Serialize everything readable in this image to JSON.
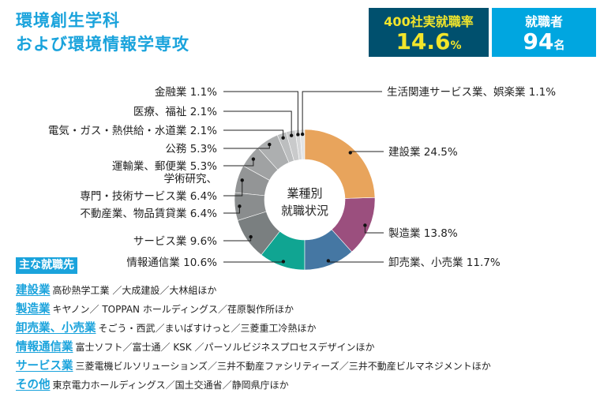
{
  "header": {
    "title_line1": "環境創生学科",
    "title_line2": "および環境情報学専攻"
  },
  "stats": [
    {
      "label": "400社実就職率",
      "value": "14.6",
      "unit": "%"
    },
    {
      "label": "就職者",
      "value": "94",
      "unit": "名"
    }
  ],
  "chart_data": {
    "type": "pie",
    "donut": true,
    "center_label_line1": "業種別",
    "center_label_line2": "就職状況",
    "slices": [
      {
        "name": "建設業",
        "value": 24.5,
        "label": "建設業 24.5%",
        "color": "#e8a45c"
      },
      {
        "name": "製造業",
        "value": 13.8,
        "label": "製造業 13.8%",
        "color": "#9b4f7e"
      },
      {
        "name": "卸売業、小売業",
        "value": 11.7,
        "label": "卸売業、小売業 11.7%",
        "color": "#4577a3"
      },
      {
        "name": "情報通信業",
        "value": 10.6,
        "label": "情報通信業 10.6%",
        "color": "#10a592"
      },
      {
        "name": "サービス業",
        "value": 9.6,
        "label": "サービス業 9.6%",
        "color": "#7a7f80"
      },
      {
        "name": "不動産業、物品賃貸業",
        "value": 6.4,
        "label": "不動産業、物品賃貸業 6.4%",
        "color": "#8a8d8e"
      },
      {
        "name": "学術研究、専門・技術サービス業",
        "value": 6.4,
        "label": "学術研究、|専門・技術サービス業 6.4%",
        "color": "#939596"
      },
      {
        "name": "運輸業、郵便業",
        "value": 5.3,
        "label": "運輸業、郵便業 5.3%",
        "color": "#a0a2a3"
      },
      {
        "name": "公務",
        "value": 5.3,
        "label": "公務 5.3%",
        "color": "#adafb0"
      },
      {
        "name": "電気・ガス・熱供給・水道業",
        "value": 2.1,
        "label": "電気・ガス・熱供給・水道業 2.1%",
        "color": "#bcbebf"
      },
      {
        "name": "医療、福祉",
        "value": 2.1,
        "label": "医療、福祉 2.1%",
        "color": "#c9cacb"
      },
      {
        "name": "金融業",
        "value": 1.1,
        "label": "金融業 1.1%",
        "color": "#d6d7d8"
      },
      {
        "name": "生活関連サービス業、娯楽業",
        "value": 1.1,
        "label": "生活関連サービス業、娯楽業 1.1%",
        "color": "#e3e4e4"
      }
    ]
  },
  "employers": {
    "heading": "主な就職先",
    "rows": [
      {
        "category": "建設業",
        "companies": "高砂熱学工業 ／大成建設／大林組ほか"
      },
      {
        "category": "製造業",
        "companies": "キヤノン／ TOPPAN ホールディングス／荏原製作所ほか"
      },
      {
        "category": "卸売業、小売業",
        "companies": "そごう・西武／まいばすけっと／三菱重工冷熱ほか"
      },
      {
        "category": "情報通信業",
        "companies": "富士ソフト／富士通／ KSK ／パーソルビジネスプロセスデザインほか"
      },
      {
        "category": "サービス業",
        "companies": "三菱電機ビルソリューションズ／三井不動産ファシリティーズ／三井不動産ビルマネジメントほか"
      },
      {
        "category": "その他",
        "companies": "東京電力ホールディングス／国土交通省／静岡県庁ほか"
      }
    ]
  }
}
